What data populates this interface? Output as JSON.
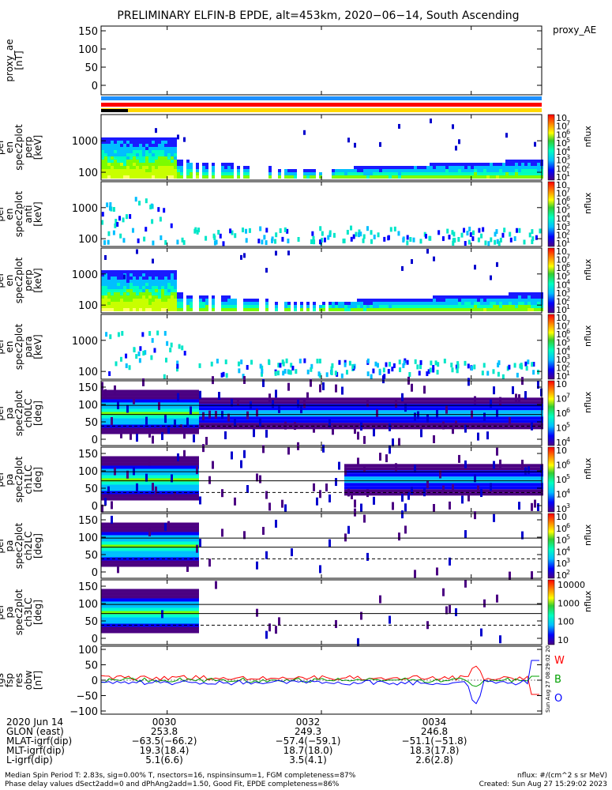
{
  "title": "PRELIMINARY ELFIN-B EPDE, alt=453km, 2020−06−14, South Ascending",
  "proxy_label": "proxy_AE",
  "panels": [
    {
      "id": "proxy",
      "ylabel": [
        "proxy_ae",
        "[nT]"
      ],
      "yticks": [
        "150",
        "100",
        "50",
        "0"
      ]
    },
    {
      "id": "perp",
      "ylabel": [
        "elb",
        "pef",
        "en",
        "spec2plot",
        "perp",
        "[keV]"
      ],
      "yticks": [
        "1000",
        "100"
      ],
      "cbar": [
        "10",
        "7",
        "6",
        "5",
        "4",
        "3",
        "2",
        "1"
      ],
      "cbar_label": "nflux"
    },
    {
      "id": "anti",
      "ylabel": [
        "elb",
        "pef",
        "en",
        "spec2plot",
        "anti",
        "[keV]"
      ],
      "yticks": [
        "1000",
        "100"
      ],
      "cbar": [
        "10",
        "7",
        "6",
        "5",
        "4",
        "3",
        "2",
        "1"
      ],
      "cbar_label": "nflux"
    },
    {
      "id": "perp2",
      "ylabel": [
        "elb",
        "pef",
        "en",
        "spec2plot",
        "perp",
        "[keV]"
      ],
      "yticks": [
        "1000",
        "100"
      ],
      "cbar": [
        "10",
        "7",
        "6",
        "5",
        "4",
        "3",
        "2",
        "1"
      ],
      "cbar_label": "nflux"
    },
    {
      "id": "para",
      "ylabel": [
        "elb",
        "pef",
        "en",
        "spec2plot",
        "para",
        "[keV]"
      ],
      "yticks": [
        "1000",
        "100"
      ],
      "cbar": [
        "10",
        "7",
        "6",
        "5",
        "4",
        "3",
        "2",
        "1"
      ],
      "cbar_label": "nflux"
    },
    {
      "id": "ch0",
      "ylabel": [
        "elb",
        "pef",
        "pa",
        "spec2plot",
        "ch0LC",
        "[deg]"
      ],
      "yticks": [
        "150",
        "100",
        "50",
        "0"
      ],
      "cbar": [
        "10",
        "7",
        "6",
        "5",
        "4"
      ],
      "cbar_label": "nflux"
    },
    {
      "id": "ch1",
      "ylabel": [
        "elb",
        "pef",
        "pa",
        "spec2plot",
        "ch1LC",
        "[deg]"
      ],
      "yticks": [
        "150",
        "100",
        "50",
        "0"
      ],
      "cbar": [
        "10",
        "6",
        "5",
        "4",
        "3"
      ],
      "cbar_label": "nflux"
    },
    {
      "id": "ch2",
      "ylabel": [
        "elb",
        "pef",
        "pa",
        "spec2plot",
        "ch2LC",
        "[deg]"
      ],
      "yticks": [
        "150",
        "100",
        "50",
        "0"
      ],
      "cbar": [
        "10",
        "6",
        "5",
        "4",
        "3",
        "2"
      ],
      "cbar_label": "nflux"
    },
    {
      "id": "ch3",
      "ylabel": [
        "elb",
        "pef",
        "pa",
        "spec2plot",
        "ch3LC",
        "[deg]"
      ],
      "yticks": [
        "150",
        "100",
        "50",
        "0"
      ],
      "cbar": [
        "10000",
        "1000",
        "100",
        "10"
      ],
      "cbar_label": "nflux"
    },
    {
      "id": "fgs",
      "ylabel": [
        "elb",
        "fgs",
        "fsp",
        "res",
        "obw",
        "[nT]"
      ],
      "yticks": [
        "100",
        "50",
        "0",
        "−50",
        "−100"
      ],
      "legend": [
        "W",
        "B",
        "O"
      ]
    }
  ],
  "footer": {
    "rows": [
      {
        "label": "2020 Jun 14",
        "values": [
          "0030",
          "0032",
          "0034"
        ]
      },
      {
        "label": "GLON (east)",
        "values": [
          "253.8",
          "249.3",
          "246.8"
        ]
      },
      {
        "label": "MLAT-igrf(dip)",
        "values": [
          "−63.5(−66.2)",
          "−57.4(−59.1)",
          "−51.1(−51.8)"
        ]
      },
      {
        "label": "MLT-igrf(dip)",
        "values": [
          "19.3(18.4)",
          "18.7(18.0)",
          "18.3(17.8)"
        ]
      },
      {
        "label": "L-igrf(dip)",
        "values": [
          "5.1(6.6)",
          "3.5(4.1)",
          "2.6(2.8)"
        ]
      }
    ],
    "note1": "Median Spin Period T: 2.83s, sig=0.00% T, nsectors=16, nspinsinsum=1, FGM completeness=87%",
    "note2": "Phase delay values dSect2add=0 and dPhAng2add=1.50, Good Fit, EPDE completeness=86%",
    "note3": "nflux: #/(cm^2 s sr MeV)",
    "note4": "Created: Sun Aug 27 15:29:02 2023",
    "watermark": "Sun Aug 27 08:29:02 2023"
  },
  "colors": {
    "blue": "#1e90ff",
    "red": "#ff0000",
    "yellow": "#ffd700",
    "black": "#000000"
  }
}
